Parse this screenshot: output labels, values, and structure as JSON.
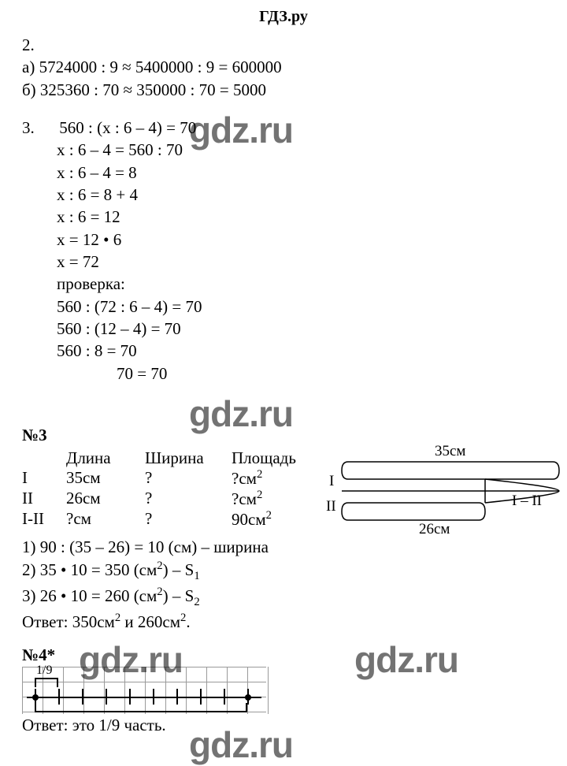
{
  "title": "ГДЗ.ру",
  "watermarks": {
    "text": "gdz.ru"
  },
  "p2": {
    "num": "2.",
    "a": "а) 5724000 : 9 ≈ 5400000 : 9 = 600000",
    "b": "б) 325360 : 70 ≈ 350000 : 70 = 5000"
  },
  "p3eq": {
    "num": "3.",
    "l1": "560 : (x : 6 – 4) = 70",
    "l2": "x : 6 – 4 = 560 : 70",
    "l3": "x : 6 – 4 = 8",
    "l4": "x : 6 = 8 + 4",
    "l5": "x : 6 = 12",
    "l6": "x = 12 • 6",
    "l7": "x = 72",
    "chk": "проверка:",
    "c1": "560 : (72 : 6 – 4) = 70",
    "c2": "560 : (12 – 4) = 70",
    "c3": "560 : 8 = 70",
    "c4": "70 = 70"
  },
  "p3": {
    "head": "№3",
    "cols": {
      "dl": "Длина",
      "sh": "Ширина",
      "pl": "Площадь"
    },
    "rows": {
      "r1": {
        "lab": "I",
        "dl": "35см",
        "sh": "?",
        "pl_pre": "?см",
        "pl_sup": "2"
      },
      "r2": {
        "lab": "II",
        "dl": "26см",
        "sh": "?",
        "pl_pre": "?см",
        "pl_sup": "2"
      },
      "r3": {
        "lab": "I-II",
        "dl": "?см",
        "sh": "?",
        "pl_pre": "90см",
        "pl_sup": "2"
      }
    },
    "s1": "1) 90 : (35 – 26) = 10 (см) – ширина",
    "s2_pre": "2) 35 • 10 = 350 (см",
    "s2_sup": "2",
    "s2_mid": ") – S",
    "s2_sub": "1",
    "s3_pre": "3) 26 • 10 = 260 (см",
    "s3_sup": "2",
    "s3_mid": ") – S",
    "s3_sub": "2",
    "ans_pre": "Ответ: 350см",
    "ans_sup1": "2",
    "ans_mid": " и 260см",
    "ans_sup2": "2",
    "ans_end": ".",
    "diagram": {
      "top": "35см",
      "bot": "26см",
      "I": "I",
      "II": "II",
      "ImII": "I – II"
    }
  },
  "p4": {
    "head": "№4*",
    "frac": "1/9",
    "ans": "Ответ: это 1/9 часть.",
    "ticks": 10,
    "grid_cols": 12,
    "grid_rows": 3
  },
  "colors": {
    "text": "#000000",
    "bg": "#ffffff",
    "grid": "#9a9a9a",
    "wm": "rgba(0,0,0,0.55)"
  }
}
